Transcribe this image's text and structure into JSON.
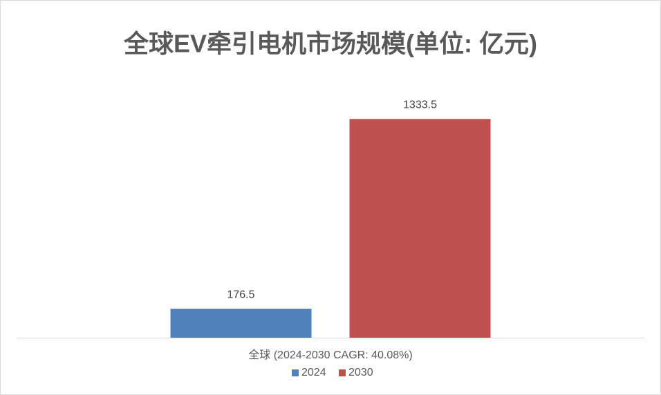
{
  "chart_data": {
    "type": "bar",
    "title": "全球EV牵引电机市场规模(单位: 亿元)",
    "categories": [
      "全球 (2024-2030 CAGR: 40.08%)"
    ],
    "series": [
      {
        "name": "2024",
        "color": "#4f81bd",
        "values": [
          176.5
        ]
      },
      {
        "name": "2030",
        "color": "#c0504d",
        "values": [
          1333.5
        ]
      }
    ],
    "ylim": [
      0,
      1600
    ],
    "grid": false,
    "legend": "bottom"
  }
}
